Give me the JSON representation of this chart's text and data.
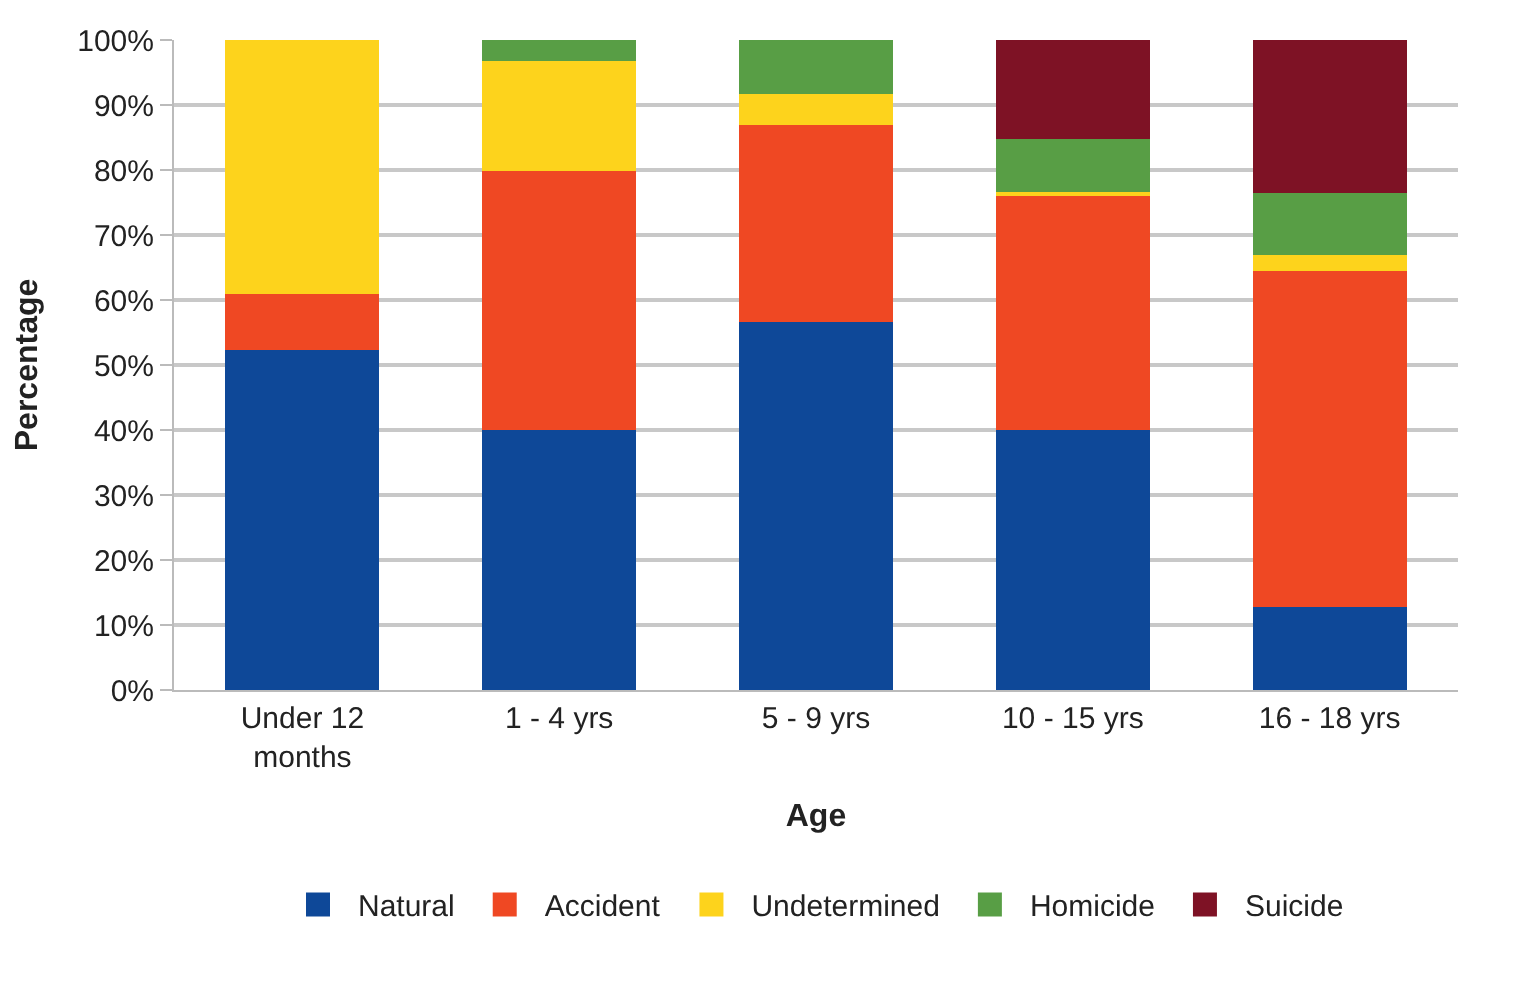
{
  "chart_data": {
    "type": "bar",
    "stacked": true,
    "xlabel": "Age",
    "ylabel": "Percentage",
    "categories": [
      "Under 12 months",
      "1 - 4 yrs",
      "5 - 9 yrs",
      "10 - 15 yrs",
      "16 - 18 yrs"
    ],
    "series": [
      {
        "name": "Natural",
        "color": "#0e4898",
        "values": [
          52.3,
          40,
          56.6,
          40,
          12.8
        ]
      },
      {
        "name": "Accident",
        "color": "#ef4823",
        "values": [
          8.6,
          39.9,
          30.4,
          36.1,
          51.7
        ]
      },
      {
        "name": "Undetermined",
        "color": "#fdd31c",
        "values": [
          39.1,
          16.9,
          4.7,
          0.5,
          2.5
        ]
      },
      {
        "name": "Homicide",
        "color": "#589e45",
        "values": [
          0,
          3.3,
          8.3,
          8.1,
          9.5
        ]
      },
      {
        "name": "Suicide",
        "color": "#7e1225",
        "values": [
          0,
          0,
          0,
          15.3,
          23.5
        ]
      }
    ],
    "ylim": [
      0,
      100
    ],
    "yticks": [
      {
        "value": 0,
        "label": "0%"
      },
      {
        "value": 10,
        "label": "10%"
      },
      {
        "value": 20,
        "label": "20%"
      },
      {
        "value": 30,
        "label": "30%"
      },
      {
        "value": 40,
        "label": "40%"
      },
      {
        "value": 50,
        "label": "50%"
      },
      {
        "value": 60,
        "label": "60%"
      },
      {
        "value": 70,
        "label": "70%"
      },
      {
        "value": 80,
        "label": "80%"
      },
      {
        "value": 90,
        "label": "90%"
      },
      {
        "value": 100,
        "label": "100%"
      }
    ],
    "grid": "y",
    "legend": "bottom"
  }
}
